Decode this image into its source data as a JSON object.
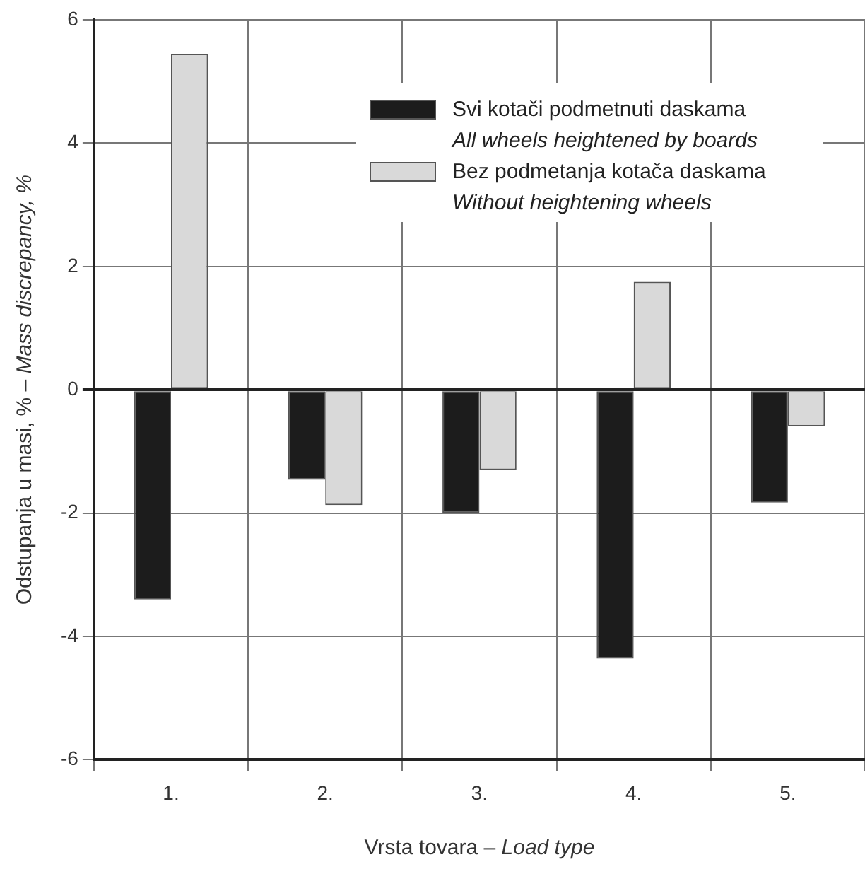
{
  "chart_data": {
    "type": "bar",
    "xlabel": "Vrsta tovara – Load type",
    "ylabel": "Odstupanja u masi, % – Mass discrepancy, %",
    "categories": [
      "1.",
      "2.",
      "3.",
      "4.",
      "5."
    ],
    "series": [
      {
        "name": "Svi kotači podmetnuti daskama\nAll wheels heightened by boards",
        "color": "#1c1c1c",
        "values": [
          -3.4,
          -1.46,
          -2.0,
          -4.36,
          -1.83
        ]
      },
      {
        "name": "Bez podmetanja kotača daskama\nWithout heightening wheels",
        "color": "#d9d9d9",
        "values": [
          5.45,
          -1.87,
          -1.3,
          1.75,
          -0.59
        ]
      }
    ],
    "ylim": [
      -6,
      6
    ],
    "yticks": [
      -6,
      -4,
      -2,
      0,
      2,
      4,
      6
    ],
    "grid": true,
    "legend": "top right"
  }
}
